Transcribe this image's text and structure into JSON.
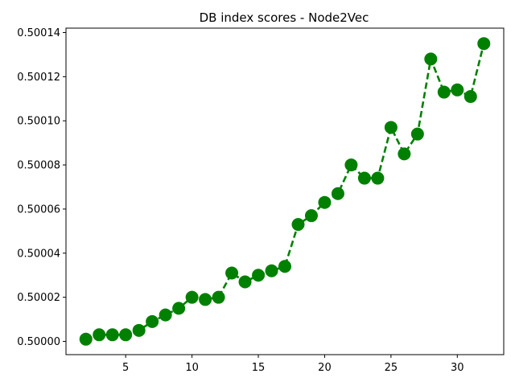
{
  "chart_data": {
    "type": "line",
    "title": "DB index scores - Node2Vec",
    "xlabel": "",
    "ylabel": "",
    "xlim": [
      0.5,
      33.5
    ],
    "ylim": [
      0.499994,
      0.500142
    ],
    "grid": false,
    "line_style": "dashed",
    "marker": "circle",
    "color": "#008000",
    "x_ticks": [
      5,
      10,
      15,
      20,
      25,
      30
    ],
    "x_tick_labels": [
      "5",
      "10",
      "15",
      "20",
      "25",
      "30"
    ],
    "y_ticks": [
      0.5,
      0.50002,
      0.50004,
      0.50006,
      0.50008,
      0.5001,
      0.50012,
      0.50014
    ],
    "y_tick_labels": [
      "0.50000",
      "0.50002",
      "0.50004",
      "0.50006",
      "0.50008",
      "0.50010",
      "0.50012",
      "0.50014"
    ],
    "series": [
      {
        "x": [
          2,
          3,
          4,
          5,
          6,
          7,
          8,
          9,
          10,
          11,
          12,
          13,
          14,
          15,
          16,
          17,
          18,
          19,
          20,
          21,
          22,
          23,
          24,
          25,
          26,
          27,
          28,
          29,
          30,
          31,
          32
        ],
        "values": [
          0.500001,
          0.500003,
          0.500003,
          0.500003,
          0.500005,
          0.500009,
          0.500012,
          0.500015,
          0.50002,
          0.500019,
          0.50002,
          0.500031,
          0.500027,
          0.50003,
          0.500032,
          0.500034,
          0.500053,
          0.500057,
          0.500063,
          0.500067,
          0.50008,
          0.500074,
          0.500074,
          0.500097,
          0.500085,
          0.500094,
          0.500128,
          0.500113,
          0.500114,
          0.500111,
          0.500135
        ]
      }
    ]
  }
}
